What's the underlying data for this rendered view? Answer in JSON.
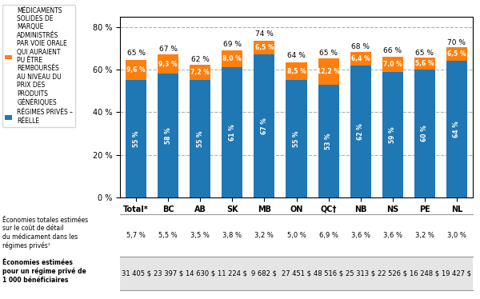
{
  "chart_data": {
    "type": "bar",
    "stacked": true,
    "data_labels": true,
    "grid": true,
    "legend": "upper left",
    "categories": [
      "Total*",
      "BC",
      "AB",
      "SK",
      "MB",
      "ON",
      "QC†",
      "NB",
      "NS",
      "PE",
      "NL"
    ],
    "series": [
      {
        "name": "RÉGIMES PRIVÉS –\nRÉELLE",
        "values": [
          55,
          58,
          55,
          61,
          67,
          55,
          53,
          62,
          59,
          60,
          64
        ],
        "value_labels": [
          "55 %",
          "58 %",
          "55 %",
          "61 %",
          "67 %",
          "55 %",
          "53 %",
          "62 %",
          "59 %",
          "60 %",
          "64 %"
        ]
      },
      {
        "name": "MÉDICAMENTS\nSOLIDES DE\nMARQUE\nADMINISTRÉS\nPAR VOIE ORALE\nQUI AURAIENT\nPU ÊTRE\nREMBOURSÉS\nAU NIVEAU DU\nPRIX DES\nPRODUITS\nGÉNÉRIQUES",
        "values": [
          9.6,
          9.3,
          7.2,
          8.0,
          6.5,
          8.5,
          12.2,
          6.4,
          7.0,
          5.6,
          6.5
        ],
        "value_labels": [
          "9,6 %",
          "9,3 %",
          "7,2 %",
          "8,0 %",
          "6,5 %",
          "8,5 %",
          "12,2 %",
          "6,4 %",
          "7,0 %",
          "5,6 %",
          "6,5 %"
        ]
      }
    ],
    "totals": [
      65,
      67,
      62,
      69,
      74,
      64,
      65,
      68,
      66,
      65,
      70
    ],
    "total_labels": [
      "65 %",
      "67 %",
      "62 %",
      "69 %",
      "74 %",
      "64 %",
      "65 %",
      "68 %",
      "66 %",
      "65 %",
      "70 %"
    ],
    "ylim": [
      0,
      85
    ],
    "yticks": [
      {
        "value": 0,
        "label": "0 %"
      },
      {
        "value": 20,
        "label": "20 %"
      },
      {
        "value": 40,
        "label": "40 %"
      },
      {
        "value": 60,
        "label": "60 %"
      },
      {
        "value": 80,
        "label": "80 %"
      }
    ],
    "table": [
      {
        "label": "Économies totales estimées\nsur le coût de détail\ndu médicament dans les\nrégimes privés¹",
        "cells": [
          "5,7 %",
          "5,5 %",
          "3,5 %",
          "3,8 %",
          "3,2 %",
          "5,0 %",
          "6,9 %",
          "3,6 %",
          "3,6 %",
          "3,2 %",
          "3,0 %"
        ]
      },
      {
        "label": "Économies estimées\npour un régime privé de\n1 000 bénéficiaires",
        "cells": [
          "31 405 $",
          "23 397 $",
          "14 630 $",
          "11 224 $",
          "9 682 $",
          "27 451 $",
          "48 516 $",
          "25 313 $",
          "22 526 $",
          "16 248 $",
          "19 427 $"
        ]
      }
    ]
  }
}
